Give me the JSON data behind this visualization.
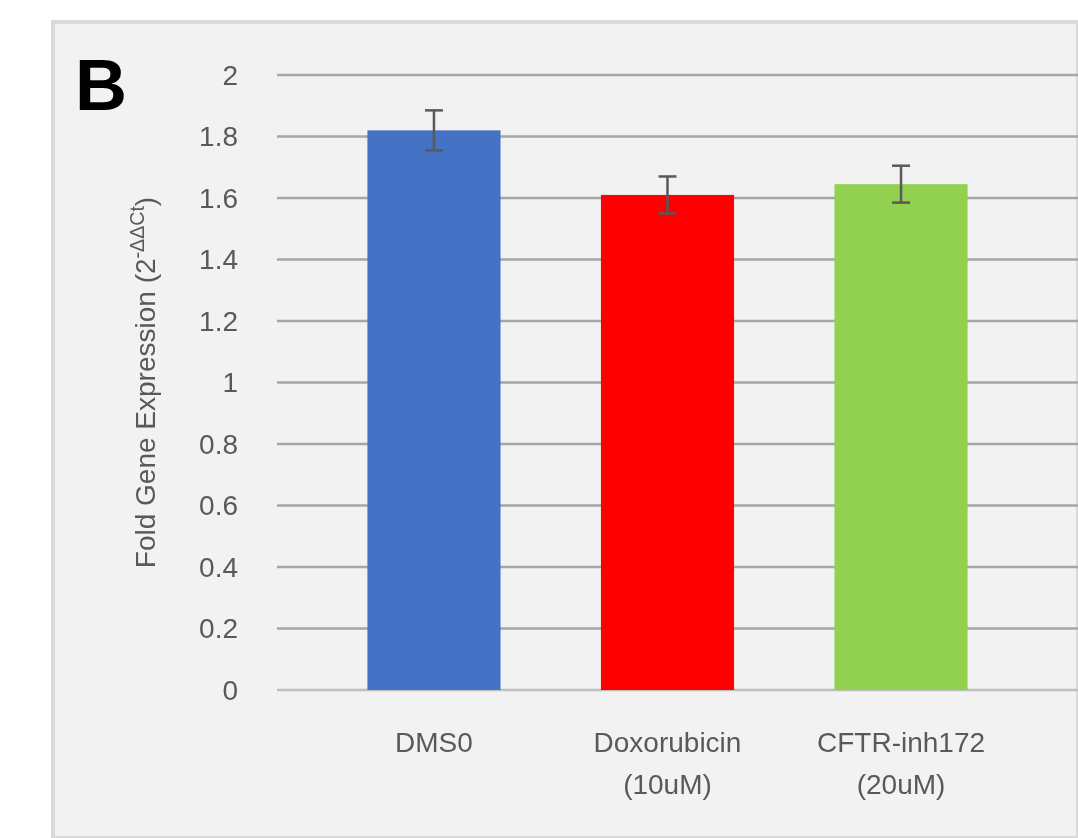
{
  "chart_data": {
    "type": "bar",
    "ylabel": "Fold Gene Expression (2$^{-ΔΔCt}$)",
    "annotations": [
      "B"
    ],
    "categories": [
      "DMS0",
      "Doxorubicin\n(10uM)",
      "CFTR-inh172\n(20uM)"
    ],
    "values": [
      1.82,
      1.61,
      1.645
    ],
    "colors": [
      "#4472c4",
      "#ff0000",
      "#92d050"
    ],
    "errors": [
      0.065,
      0.06,
      0.06
    ],
    "ylim": [
      0,
      2
    ],
    "yticks": [
      0,
      0.2,
      0.4,
      0.6,
      0.8,
      1,
      1.2,
      1.4,
      1.6,
      1.8,
      2
    ],
    "grid": "y"
  }
}
